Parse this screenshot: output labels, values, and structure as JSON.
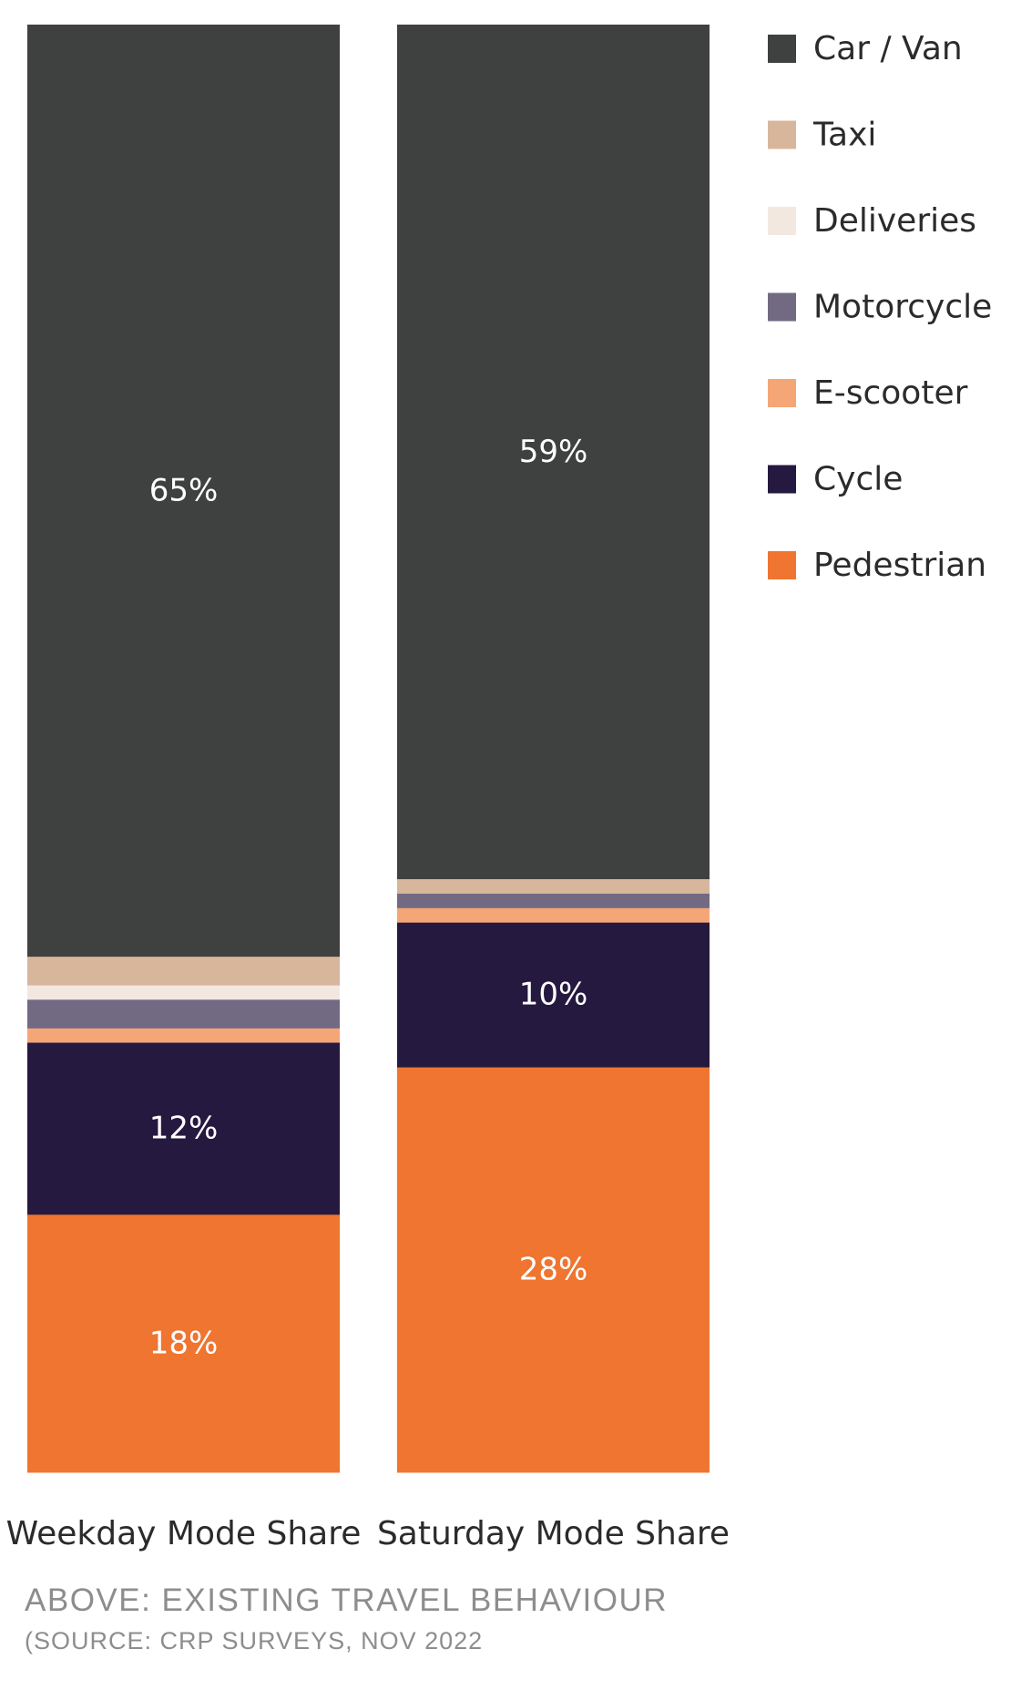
{
  "chart_data": {
    "type": "bar",
    "stacked": true,
    "percent": true,
    "title": "",
    "xlabel": "",
    "ylabel": "",
    "ylim": [
      0,
      100
    ],
    "grid": false,
    "legend_position": "top-right",
    "categories": [
      "Weekday Mode Share",
      "Saturday Mode Share"
    ],
    "series": [
      {
        "name": "Pedestrian",
        "values": [
          18,
          28
        ],
        "color": "#ef7530",
        "labels": [
          "18%",
          "28%"
        ]
      },
      {
        "name": "Cycle",
        "values": [
          12,
          10
        ],
        "color": "#251940",
        "labels": [
          "12%",
          "10%"
        ]
      },
      {
        "name": "E-scooter",
        "values": [
          1,
          1
        ],
        "color": "#f5a676",
        "labels": [
          "",
          ""
        ]
      },
      {
        "name": "Motorcycle",
        "values": [
          2,
          1
        ],
        "color": "#726a82",
        "labels": [
          "",
          ""
        ]
      },
      {
        "name": "Deliveries",
        "values": [
          1,
          0
        ],
        "color": "#f3e8e0",
        "labels": [
          "",
          ""
        ]
      },
      {
        "name": "Taxi",
        "values": [
          2,
          1
        ],
        "color": "#d8b69c",
        "labels": [
          "",
          ""
        ]
      },
      {
        "name": "Car / Van",
        "values": [
          65,
          59
        ],
        "color": "#3f4040",
        "labels": [
          "65%",
          "59%"
        ]
      }
    ],
    "legend_order": [
      "Car / Van",
      "Taxi",
      "Deliveries",
      "Motorcycle",
      "E-scooter",
      "Cycle",
      "Pedestrian"
    ]
  },
  "caption": {
    "title": "ABOVE: EXISTING TRAVEL BEHAVIOUR",
    "source": "(SOURCE: CRP SURVEYS, NOV 2022"
  }
}
